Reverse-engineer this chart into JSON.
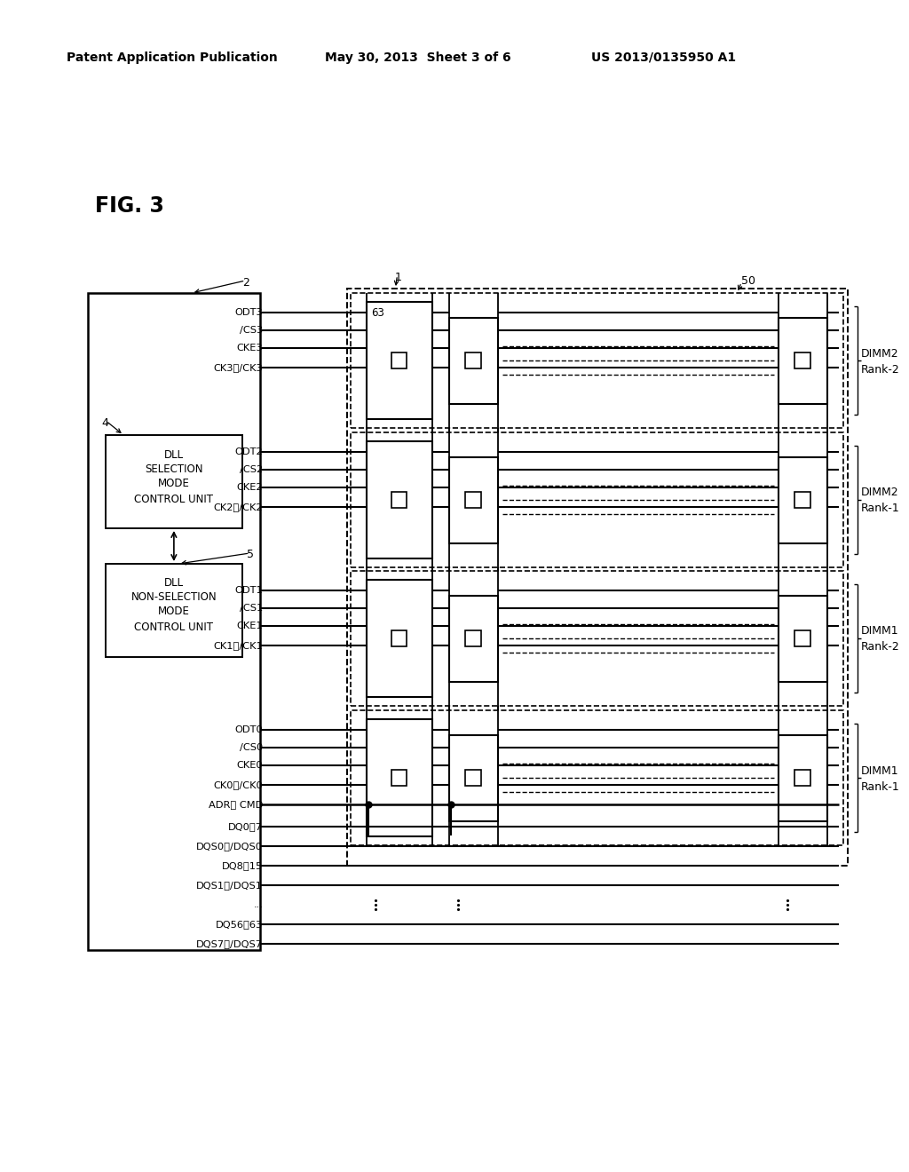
{
  "bg_color": "#ffffff",
  "header_left": "Patent Application Publication",
  "header_mid": "May 30, 2013  Sheet 3 of 6",
  "header_right": "US 2013/0135950 A1",
  "fig_label": "FIG. 3",
  "label2": "2",
  "label1": "1",
  "label4": "4",
  "label5": "5",
  "label50": "50",
  "label63": "63"
}
